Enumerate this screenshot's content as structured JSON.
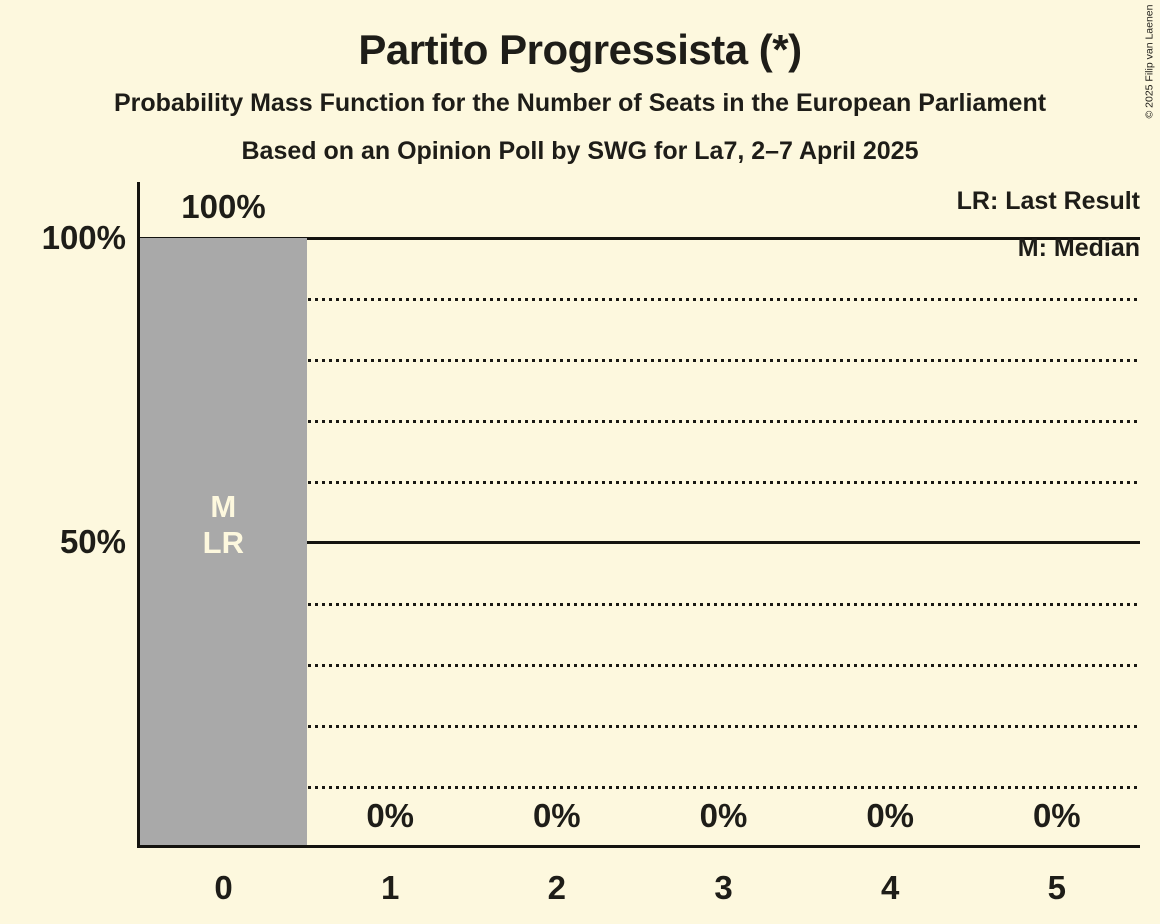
{
  "title": "Partito Progressista (*)",
  "subtitles": [
    "Probability Mass Function for the Number of Seats in the European Parliament",
    "Based on an Opinion Poll by SWG for La7, 2–7 April 2025"
  ],
  "copyright": "© 2025 Filip van Laenen",
  "legend": {
    "last_result": "LR: Last Result",
    "median": "M: Median"
  },
  "y_axis": {
    "ticks": [
      "100%",
      "50%"
    ]
  },
  "bar_labels": {
    "median": "M",
    "last_result": "LR"
  },
  "chart_data": {
    "type": "bar",
    "title": "Partito Progressista (*)",
    "categories": [
      "0",
      "1",
      "2",
      "3",
      "4",
      "5"
    ],
    "values": [
      100,
      0,
      0,
      0,
      0,
      0
    ],
    "value_labels": [
      "100%",
      "0%",
      "0%",
      "0%",
      "0%",
      "0%"
    ],
    "xlabel": "",
    "ylabel": "",
    "ylim": [
      0,
      100
    ],
    "y_gridlines_pct": [
      10,
      20,
      30,
      40,
      50,
      60,
      70,
      80,
      90,
      100
    ],
    "solid_gridlines_pct": [
      50,
      100
    ],
    "grid": true,
    "legend_position": "top-right",
    "median_category": "0",
    "last_result_category": "0",
    "bar_color": "#a9a9a9",
    "background_color": "#fdf8de",
    "text_color": "#1e1d18"
  }
}
